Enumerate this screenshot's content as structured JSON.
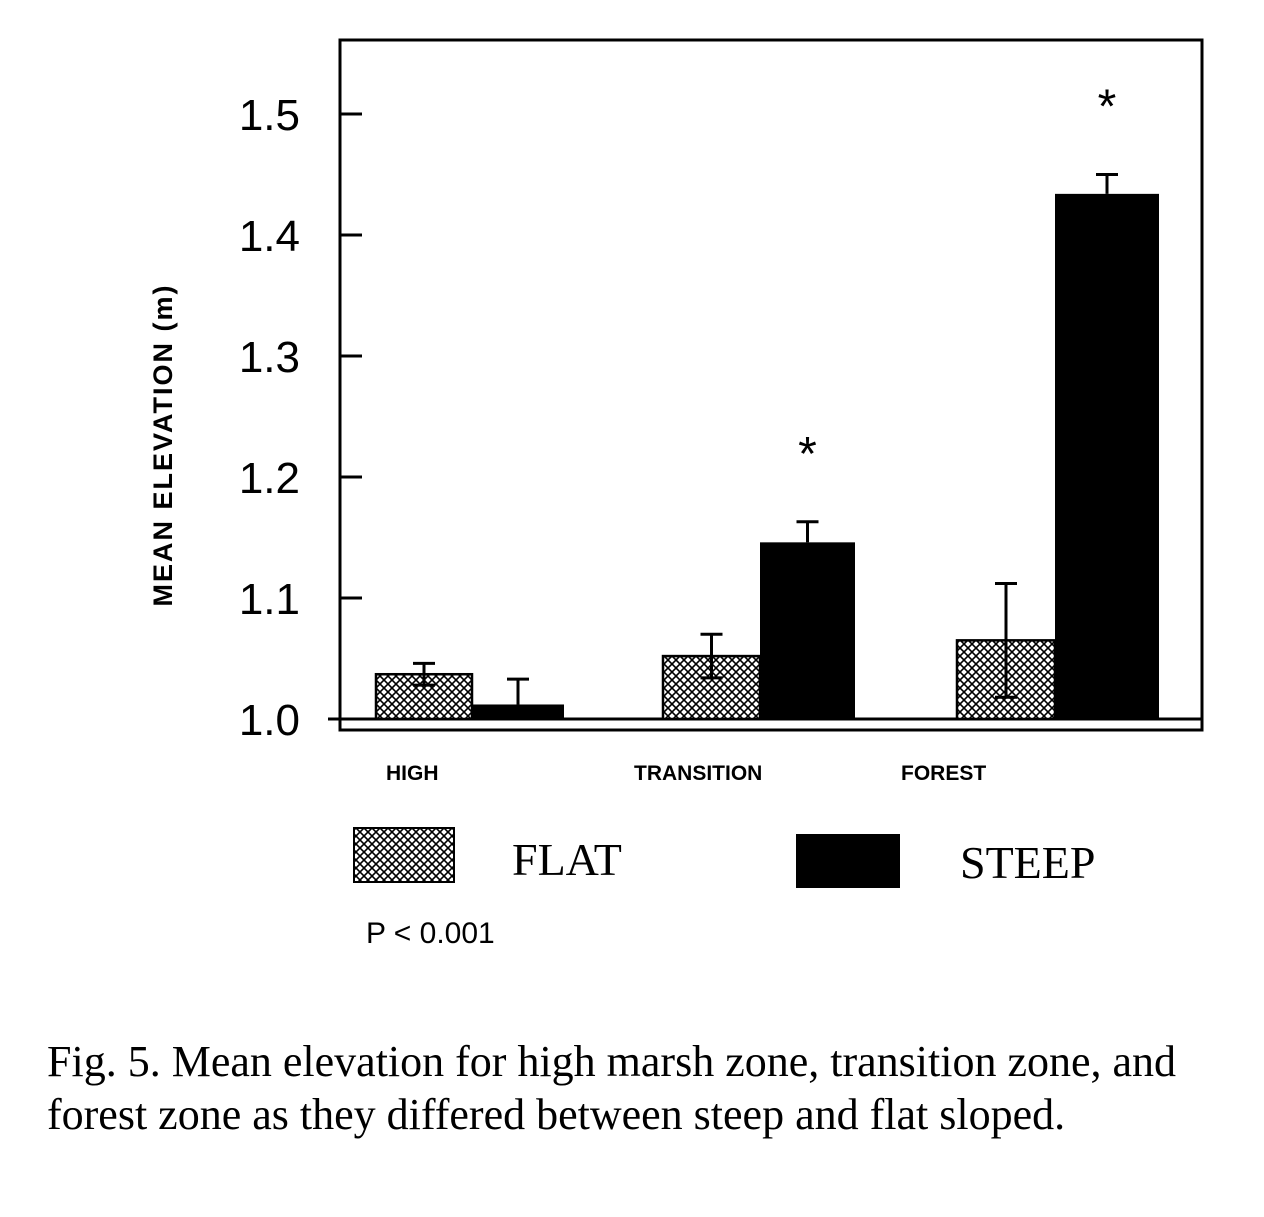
{
  "chart_data": {
    "type": "bar",
    "ylabel": "MEAN ELEVATION (m)",
    "ylim": [
      1.0,
      1.55
    ],
    "yticks": [
      "1.0",
      "1.1",
      "1.2",
      "1.3",
      "1.4",
      "1.5"
    ],
    "ytick_values": [
      1.0,
      1.1,
      1.2,
      1.3,
      1.4,
      1.5
    ],
    "grid": false,
    "legend_position": "bottom",
    "categories": [
      "HIGH",
      "TRANSITION",
      "FOREST"
    ],
    "series": [
      {
        "name": "FLAT",
        "pattern": "crosshatch",
        "values": [
          1.037,
          1.052,
          1.065
        ],
        "errors": [
          0.009,
          0.018,
          0.047
        ]
      },
      {
        "name": "STEEP",
        "pattern": "solid",
        "color": "#000000",
        "values": [
          1.012,
          1.146,
          1.434
        ],
        "errors": [
          0.021,
          0.017,
          0.016
        ]
      }
    ],
    "annotations": [
      {
        "series": "STEEP",
        "category": "TRANSITION",
        "text": "*"
      },
      {
        "series": "STEEP",
        "category": "FOREST",
        "text": "*"
      }
    ],
    "pvalue_text": "P < 0.001"
  },
  "caption": "Fig. 5.  Mean elevation for high marsh zone, transition zone, and forest zone as they differed between steep and flat sloped."
}
